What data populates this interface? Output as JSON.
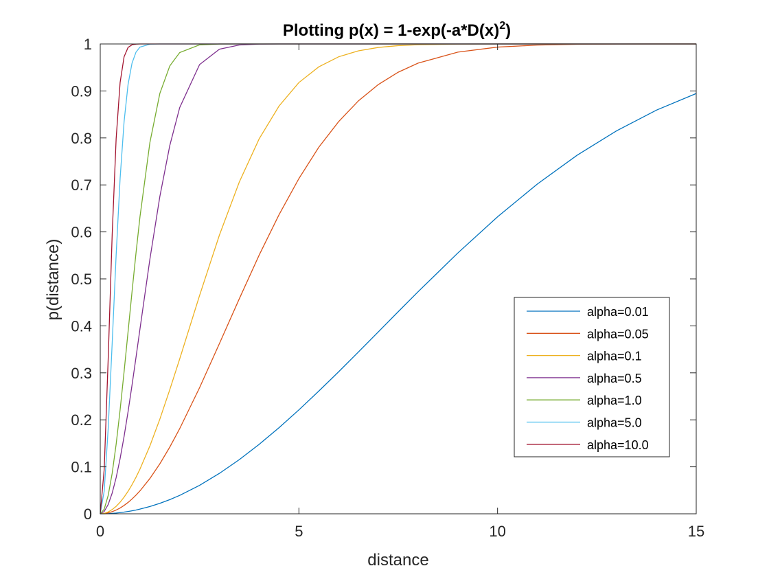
{
  "chart_data": {
    "type": "line",
    "title": "Plotting p(x) = 1-exp(-a*D(x)",
    "title_superscript": "2",
    "title_suffix": ")",
    "xlabel": "distance",
    "ylabel": "p(distance)",
    "xlim": [
      0,
      15
    ],
    "ylim": [
      0,
      1
    ],
    "xticks": [
      0,
      5,
      10,
      15
    ],
    "xtick_labels": [
      "0",
      "5",
      "10",
      "15"
    ],
    "yticks": [
      0,
      0.1,
      0.2,
      0.3,
      0.4,
      0.5,
      0.6,
      0.7,
      0.8,
      0.9,
      1
    ],
    "ytick_labels": [
      "0",
      "0.1",
      "0.2",
      "0.3",
      "0.4",
      "0.5",
      "0.6",
      "0.7",
      "0.8",
      "0.9",
      "1"
    ],
    "grid": false,
    "legend_position": "lower-right",
    "x": [
      0,
      0.1,
      0.2,
      0.3,
      0.4,
      0.5,
      0.6,
      0.7,
      0.8,
      0.9,
      1.0,
      1.25,
      1.5,
      1.75,
      2.0,
      2.5,
      3.0,
      3.5,
      4.0,
      4.5,
      5.0,
      5.5,
      6.0,
      6.5,
      7.0,
      7.5,
      8.0,
      9.0,
      10.0,
      11.0,
      12.0,
      13.0,
      14.0,
      15.0
    ],
    "series": [
      {
        "name": "alpha=0.01",
        "color": "#0072BD",
        "values": [
          0,
          0.0001,
          0.0004,
          0.0009,
          0.0016,
          0.0025,
          0.0036,
          0.0049,
          0.0064,
          0.0081,
          0.01,
          0.0155,
          0.0223,
          0.0302,
          0.0392,
          0.0606,
          0.0861,
          0.1153,
          0.1479,
          0.1833,
          0.2212,
          0.2611,
          0.3023,
          0.3446,
          0.3874,
          0.4302,
          0.4727,
          0.5551,
          0.6321,
          0.7018,
          0.7631,
          0.8154,
          0.8592,
          0.8946
        ]
      },
      {
        "name": "alpha=0.05",
        "color": "#D95319",
        "values": [
          0,
          0.0005,
          0.002,
          0.0045,
          0.008,
          0.0124,
          0.0178,
          0.0242,
          0.0315,
          0.0397,
          0.0488,
          0.0752,
          0.1064,
          0.142,
          0.1813,
          0.2684,
          0.3624,
          0.4577,
          0.5507,
          0.6366,
          0.7135,
          0.7802,
          0.8347,
          0.8791,
          0.9137,
          0.9399,
          0.9592,
          0.9826,
          0.9933,
          0.9976,
          0.9993,
          0.9998,
          1.0,
          1.0
        ]
      },
      {
        "name": "alpha=0.1",
        "color": "#EDB120",
        "values": [
          0,
          0.001,
          0.004,
          0.009,
          0.0159,
          0.0247,
          0.0354,
          0.0478,
          0.062,
          0.0778,
          0.0952,
          0.1446,
          0.2015,
          0.2642,
          0.3297,
          0.4647,
          0.5934,
          0.7062,
          0.7981,
          0.8679,
          0.9179,
          0.9513,
          0.9727,
          0.9854,
          0.9926,
          0.9964,
          0.9983,
          0.9997,
          1.0,
          1.0,
          1.0,
          1.0,
          1.0,
          1.0
        ]
      },
      {
        "name": "alpha=0.5",
        "color": "#7E2F8E",
        "values": [
          0,
          0.005,
          0.0198,
          0.044,
          0.0769,
          0.1175,
          0.1647,
          0.2173,
          0.2739,
          0.333,
          0.3935,
          0.5421,
          0.6753,
          0.7837,
          0.8647,
          0.9561,
          0.9889,
          0.9978,
          0.9997,
          1.0,
          1.0,
          1.0,
          1.0,
          1.0,
          1.0,
          1.0,
          1.0,
          1.0,
          1.0,
          1.0,
          1.0,
          1.0,
          1.0,
          1.0
        ]
      },
      {
        "name": "alpha=1.0",
        "color": "#77AC30",
        "values": [
          0,
          0.01,
          0.0392,
          0.0861,
          0.1479,
          0.2212,
          0.3023,
          0.3874,
          0.4727,
          0.5551,
          0.6321,
          0.7904,
          0.8946,
          0.9532,
          0.9817,
          0.9981,
          0.9999,
          1.0,
          1.0,
          1.0,
          1.0,
          1.0,
          1.0,
          1.0,
          1.0,
          1.0,
          1.0,
          1.0,
          1.0,
          1.0,
          1.0,
          1.0,
          1.0,
          1.0
        ]
      },
      {
        "name": "alpha=5.0",
        "color": "#4DBEEE",
        "values": [
          0,
          0.0488,
          0.1813,
          0.3624,
          0.5507,
          0.7135,
          0.8347,
          0.9137,
          0.9592,
          0.9826,
          0.9933,
          0.9996,
          1.0,
          1.0,
          1.0,
          1.0,
          1.0,
          1.0,
          1.0,
          1.0,
          1.0,
          1.0,
          1.0,
          1.0,
          1.0,
          1.0,
          1.0,
          1.0,
          1.0,
          1.0,
          1.0,
          1.0,
          1.0,
          1.0
        ]
      },
      {
        "name": "alpha=10.0",
        "color": "#A2142F",
        "values": [
          0,
          0.0952,
          0.3297,
          0.5934,
          0.7981,
          0.9179,
          0.9727,
          0.9926,
          0.9983,
          0.9997,
          1.0,
          1.0,
          1.0,
          1.0,
          1.0,
          1.0,
          1.0,
          1.0,
          1.0,
          1.0,
          1.0,
          1.0,
          1.0,
          1.0,
          1.0,
          1.0,
          1.0,
          1.0,
          1.0,
          1.0,
          1.0,
          1.0,
          1.0,
          1.0
        ]
      }
    ]
  }
}
